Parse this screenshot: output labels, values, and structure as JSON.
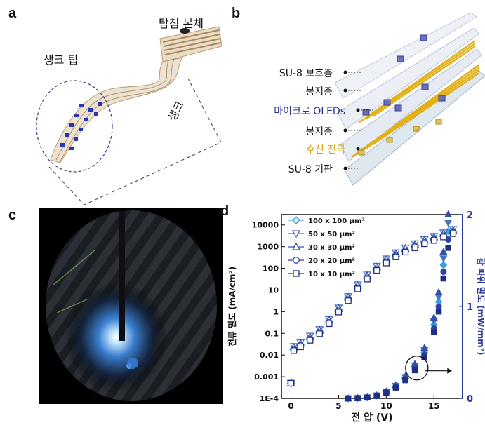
{
  "panels": {
    "a": {
      "letter": "a",
      "labels": {
        "body": "탐침 본체",
        "tip": "생크 팁",
        "shank": "생크"
      }
    },
    "b": {
      "letter": "b",
      "layers": [
        {
          "text": "SU-8 보호층",
          "color": "#111111"
        },
        {
          "text": "봉지층",
          "color": "#111111"
        },
        {
          "text": "마이크로 OLEDs",
          "color": "#2d2f8f"
        },
        {
          "text": "봉지층",
          "color": "#111111"
        },
        {
          "text": "수신 전극",
          "color": "#d4a300"
        },
        {
          "text": "SU-8 기판",
          "color": "#111111"
        }
      ]
    },
    "c": {
      "letter": "c"
    },
    "d": {
      "letter": "d"
    }
  },
  "chart_data": {
    "type": "scatter",
    "xlabel": "전 압 (V)",
    "ylabel_left": "전류 밀도 (mA/cm²)",
    "ylabel_right": "광 파워 밀도 (mW/mm²)",
    "xlim": [
      -1,
      18
    ],
    "xticks": [
      0,
      5,
      10,
      15
    ],
    "ylim_left": [
      0.0001,
      30000
    ],
    "yscale_left": "log",
    "yticks_left": [
      "1E-4",
      "0.001",
      "0.01",
      "0.1",
      "1",
      "10",
      "100",
      "1000",
      "10000"
    ],
    "ylim_right": [
      0,
      2
    ],
    "yticks_right": [
      0,
      1,
      2
    ],
    "legend_position": "top-left",
    "series": [
      {
        "name": "100 x 100 μm²",
        "marker": "diamond",
        "color": "#35a0de",
        "fill": "#cfe9f7"
      },
      {
        "name": "50 x 50 μm²",
        "marker": "triangle-down",
        "color": "#4a72c4",
        "fill": "#ffffff"
      },
      {
        "name": "30 x 30 μm²",
        "marker": "triangle-up",
        "color": "#3550a8",
        "fill": "#ffffff"
      },
      {
        "name": "20 x 20 μm²",
        "marker": "circle",
        "color": "#2a44a0",
        "fill": "#ffffff"
      },
      {
        "name": "10 x 10 μm²",
        "marker": "square",
        "color": "#1f2f86",
        "fill": "#ffffff"
      }
    ],
    "current_density_curve": {
      "x": [
        0,
        0.3,
        1,
        2,
        3,
        4,
        5,
        6,
        7,
        8,
        9,
        10,
        11,
        12,
        13,
        14,
        15,
        16,
        17
      ],
      "y": [
        0.0005,
        0.02,
        0.03,
        0.06,
        0.12,
        0.35,
        1.2,
        4,
        14,
        40,
        100,
        220,
        420,
        700,
        1100,
        1700,
        2400,
        3500,
        5000
      ]
    },
    "optical_power_curve": {
      "x": [
        6,
        7,
        8,
        9,
        10,
        11,
        12,
        13,
        14,
        15,
        15.5,
        16,
        16.5
      ],
      "y": [
        0,
        0.003,
        0.01,
        0.03,
        0.07,
        0.13,
        0.22,
        0.34,
        0.5,
        0.8,
        1.05,
        1.45,
        1.82
      ]
    },
    "annotation": "circle-with-arrow-right"
  }
}
